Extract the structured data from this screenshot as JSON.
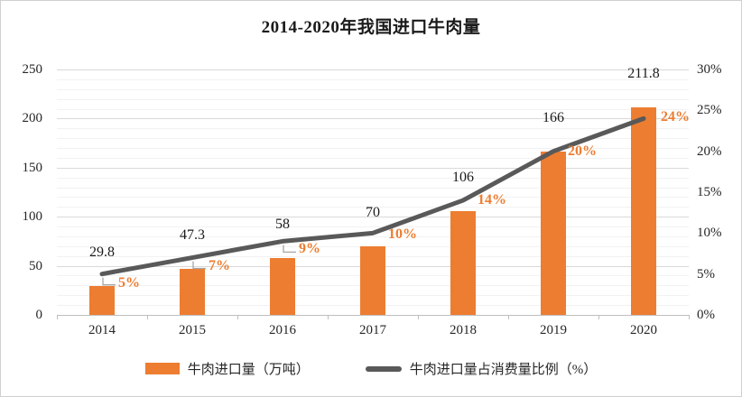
{
  "title": "2014-2020年我国进口牛肉量",
  "legend": [
    {
      "label": "牛肉进口量（万吨）",
      "color": "#ED7D31",
      "type": "bar"
    },
    {
      "label": "牛肉进口量占消费量比例（%）",
      "color": "#595959",
      "type": "line"
    }
  ],
  "colors": {
    "bar": "#ED7D31",
    "line": "#595959",
    "percent_label": "#ED7D31",
    "value_label": "#1a1a1a",
    "axis_text": "#262626",
    "major_grid": "#d9d9d9",
    "minor_grid": "#f2f2f2",
    "axis_line": "#bfbfbf",
    "leader_line": "#a6a6a6"
  },
  "chart_data": {
    "type": "bar",
    "subtype": "bar-line-combo",
    "title": "2014-2020年我国进口牛肉量",
    "categories": [
      "2014",
      "2015",
      "2016",
      "2017",
      "2018",
      "2019",
      "2020"
    ],
    "series": [
      {
        "name": "牛肉进口量（万吨）",
        "type": "bar",
        "axis": "left",
        "color": "#ED7D31",
        "values": [
          29.8,
          47.3,
          58,
          70,
          106,
          166,
          211.8
        ],
        "labels": [
          "29.8",
          "47.3",
          "58",
          "70",
          "106",
          "166",
          "211.8"
        ]
      },
      {
        "name": "牛肉进口量占消费量比例（%）",
        "type": "line",
        "axis": "right",
        "color": "#595959",
        "values": [
          5,
          7,
          9,
          10,
          14,
          20,
          24
        ],
        "labels": [
          "5%",
          "7%",
          "9%",
          "10%",
          "14%",
          "20%",
          "24%"
        ]
      }
    ],
    "left_axis": {
      "min": 0,
      "max": 250,
      "ticks": [
        0,
        50,
        100,
        150,
        200,
        250
      ],
      "minor_step": 10
    },
    "right_axis": {
      "min": 0,
      "max": 30,
      "tick_step": 5,
      "tick_labels": [
        "0%",
        "5%",
        "10%",
        "15%",
        "20%",
        "25%",
        "30%"
      ]
    },
    "grid": true,
    "legend_position": "bottom"
  }
}
